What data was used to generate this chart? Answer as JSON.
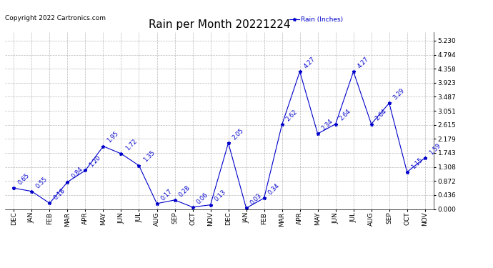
{
  "title": "Rain per Month 20221224",
  "copyright_text": "Copyright 2022 Cartronics.com",
  "legend_label": "Rain (Inches)",
  "categories": [
    "DEC",
    "JAN",
    "FEB",
    "MAR",
    "APR",
    "MAY",
    "JUN",
    "JUL",
    "AUG",
    "SEP",
    "OCT",
    "NOV",
    "DEC",
    "JAN",
    "FEB",
    "MAR",
    "APR",
    "MAY",
    "JUN",
    "JUL",
    "AUG",
    "SEP",
    "OCT",
    "NOV"
  ],
  "values": [
    0.65,
    0.55,
    0.18,
    0.84,
    1.2,
    1.95,
    1.72,
    1.35,
    0.17,
    0.28,
    0.06,
    0.13,
    2.05,
    0.03,
    0.34,
    2.62,
    4.27,
    2.34,
    2.64,
    4.27,
    2.64,
    3.29,
    1.15,
    1.59
  ],
  "line_color": "#0000cc",
  "marker_color": "#0000cc",
  "label_color": "#0000cc",
  "background_color": "#ffffff",
  "grid_color": "#888888",
  "ylim": [
    0.0,
    5.494
  ],
  "yticks": [
    0.0,
    0.436,
    0.872,
    1.308,
    1.743,
    2.179,
    2.615,
    3.051,
    3.487,
    3.923,
    4.358,
    4.794,
    5.23
  ],
  "title_fontsize": 11,
  "label_fontsize": 6.0,
  "tick_fontsize": 6.5,
  "copyright_fontsize": 6.5,
  "legend_fontsize": 6.5
}
